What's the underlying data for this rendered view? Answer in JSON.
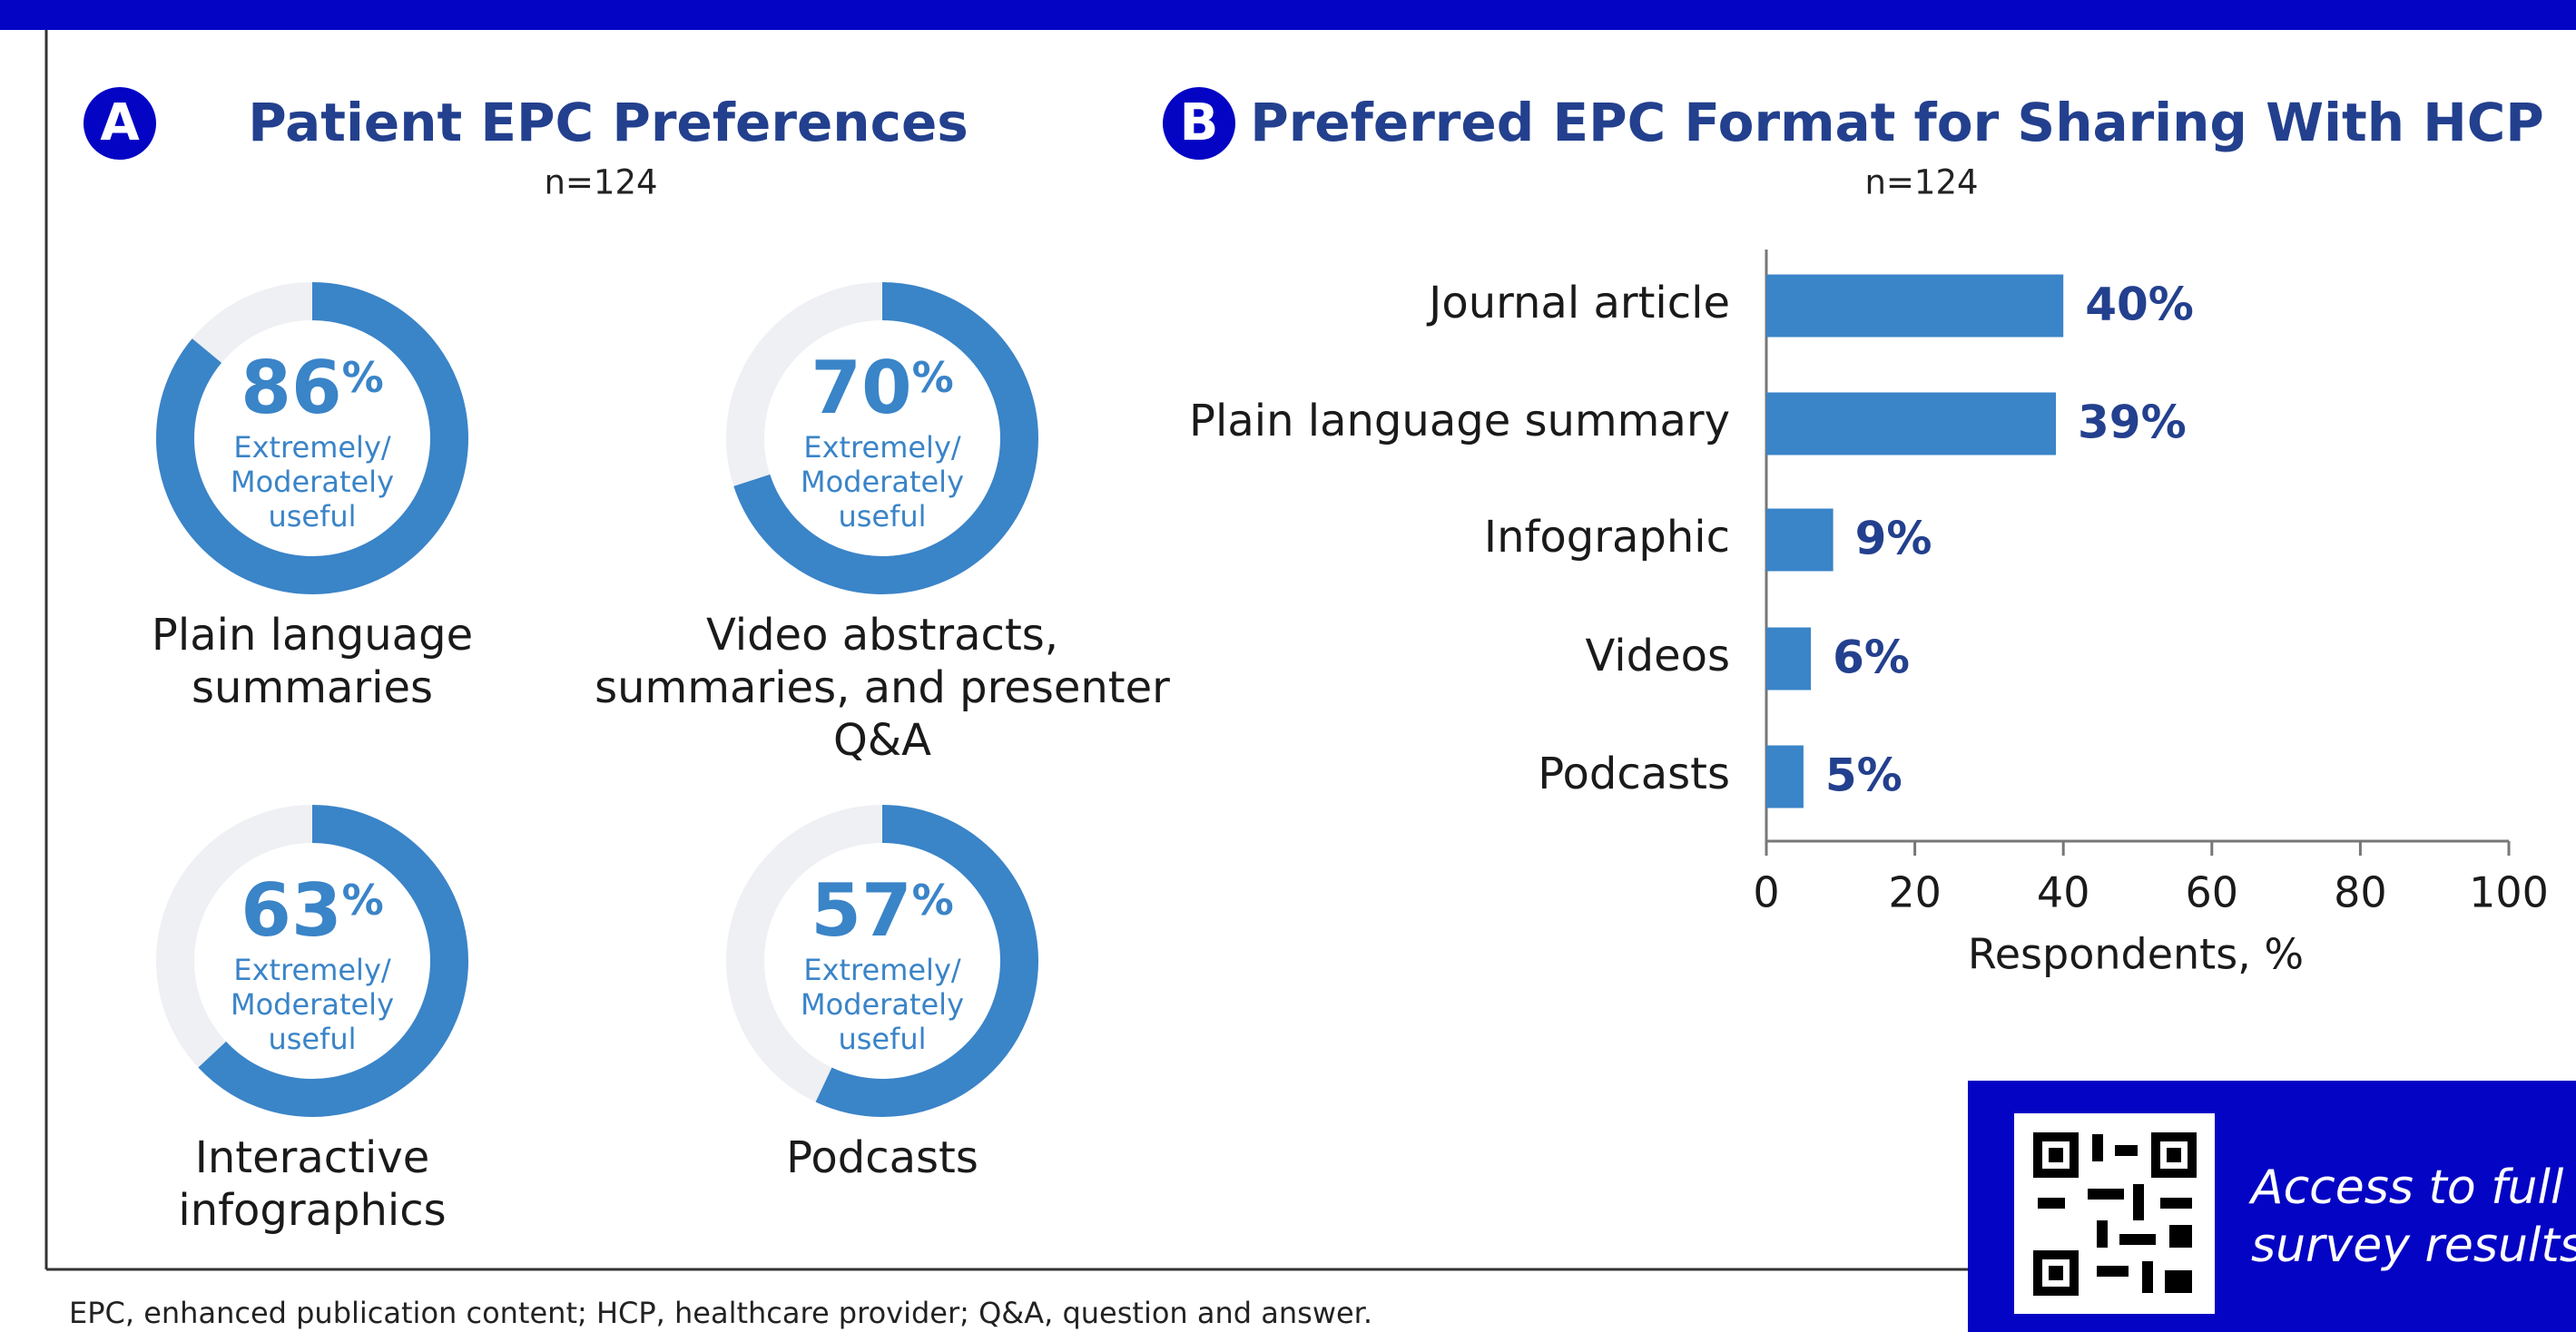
{
  "panels": [
    "A",
    "B"
  ],
  "chart_data": [
    {
      "type": "donut",
      "title": "Patient EPC Preferences",
      "subtitle": "n=124",
      "categories": [
        "Plain language summaries",
        "Video abstracts, summaries, and presenter Q&A",
        "Interactive infographics",
        "Podcasts"
      ],
      "values": [
        86,
        70,
        63,
        57
      ],
      "unit": "%",
      "value_description": [
        "Extremely/",
        "Moderately",
        "useful"
      ],
      "color": "#3a84c8",
      "track_color": "#eef0f3"
    },
    {
      "type": "hbar",
      "title": "Preferred EPC Format for Sharing With HCP",
      "subtitle": "n=124",
      "categories": [
        "Journal article",
        "Plain language summary",
        "Infographic",
        "Videos",
        "Podcasts"
      ],
      "values": [
        40,
        39,
        9,
        6,
        5
      ],
      "value_labels": [
        "40%",
        "39%",
        "9%",
        "6%",
        "5%"
      ],
      "xlim": [
        0,
        100
      ],
      "xticks": [
        0,
        20,
        40,
        60,
        80,
        100
      ],
      "xlabel": "Respondents, %",
      "color": "#3a84c8"
    }
  ],
  "qr_text": [
    "Access to full",
    "survey results"
  ],
  "footnote": "EPC, enhanced publication content; HCP, healthcare provider; Q&A, question and answer."
}
